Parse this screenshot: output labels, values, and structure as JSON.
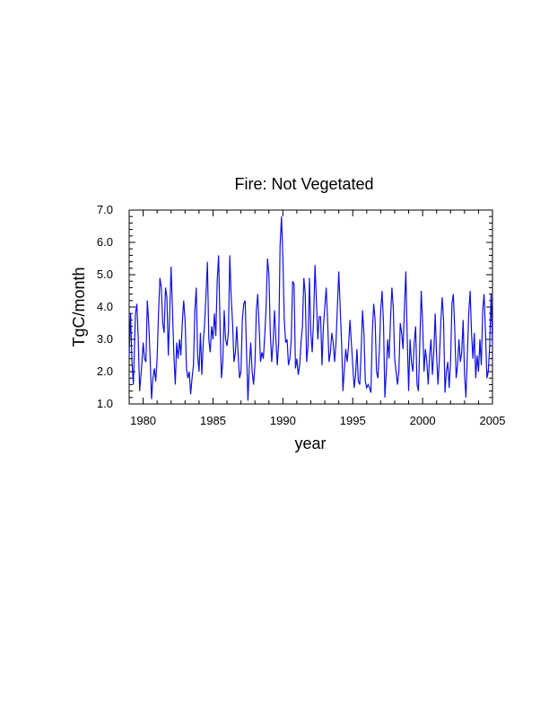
{
  "chart_data": {
    "type": "line",
    "title": "Fire: Not Vegetated",
    "xlabel": "year",
    "ylabel": "TgC/month",
    "xlim": [
      1979,
      2005
    ],
    "ylim": [
      1.0,
      7.0
    ],
    "x_ticks": [
      1980,
      1985,
      1990,
      1995,
      2000,
      2005
    ],
    "x_tick_labels": [
      "1980",
      "1985",
      "1990",
      "1995",
      "2000",
      "2005"
    ],
    "y_ticks": [
      1.0,
      2.0,
      3.0,
      4.0,
      5.0,
      6.0,
      7.0
    ],
    "y_tick_labels": [
      "1.0",
      "2.0",
      "3.0",
      "4.0",
      "5.0",
      "6.0",
      "7.0"
    ],
    "series": [
      {
        "name": "Fire: Not Vegetated",
        "color": "#1010e0",
        "points": [
          [
            1979.0,
            2.5
          ],
          [
            1979.1,
            3.8
          ],
          [
            1979.2,
            2.3
          ],
          [
            1979.3,
            1.6
          ],
          [
            1979.45,
            3.8
          ],
          [
            1979.55,
            4.1
          ],
          [
            1979.65,
            3.0
          ],
          [
            1979.75,
            1.4
          ],
          [
            1979.9,
            2.2
          ],
          [
            1980.0,
            2.9
          ],
          [
            1980.1,
            2.4
          ],
          [
            1980.2,
            2.3
          ],
          [
            1980.3,
            4.2
          ],
          [
            1980.4,
            3.5
          ],
          [
            1980.5,
            2.4
          ],
          [
            1980.6,
            1.15
          ],
          [
            1980.7,
            1.8
          ],
          [
            1980.8,
            2.1
          ],
          [
            1980.9,
            1.7
          ],
          [
            1981.0,
            2.4
          ],
          [
            1981.1,
            3.8
          ],
          [
            1981.2,
            4.9
          ],
          [
            1981.3,
            4.6
          ],
          [
            1981.4,
            3.5
          ],
          [
            1981.5,
            3.2
          ],
          [
            1981.6,
            4.6
          ],
          [
            1981.7,
            4.3
          ],
          [
            1981.8,
            2.5
          ],
          [
            1981.9,
            3.8
          ],
          [
            1982.0,
            5.25
          ],
          [
            1982.1,
            3.9
          ],
          [
            1982.2,
            2.5
          ],
          [
            1982.3,
            1.6
          ],
          [
            1982.4,
            2.9
          ],
          [
            1982.5,
            2.4
          ],
          [
            1982.6,
            3.0
          ],
          [
            1982.7,
            2.5
          ],
          [
            1982.8,
            3.5
          ],
          [
            1982.9,
            4.2
          ],
          [
            1983.0,
            3.6
          ],
          [
            1983.1,
            2.1
          ],
          [
            1983.2,
            1.8
          ],
          [
            1983.3,
            2.0
          ],
          [
            1983.4,
            1.3
          ],
          [
            1983.5,
            1.8
          ],
          [
            1983.6,
            2.2
          ],
          [
            1983.7,
            3.9
          ],
          [
            1983.8,
            4.6
          ],
          [
            1983.9,
            2.5
          ],
          [
            1984.0,
            2.0
          ],
          [
            1984.1,
            3.2
          ],
          [
            1984.2,
            1.9
          ],
          [
            1984.3,
            2.9
          ],
          [
            1984.4,
            3.5
          ],
          [
            1984.5,
            4.4
          ],
          [
            1984.6,
            5.4
          ],
          [
            1984.7,
            3.0
          ],
          [
            1984.8,
            2.6
          ],
          [
            1984.9,
            3.4
          ],
          [
            1985.0,
            3.0
          ],
          [
            1985.1,
            3.8
          ],
          [
            1985.2,
            3.1
          ],
          [
            1985.3,
            4.8
          ],
          [
            1985.4,
            5.6
          ],
          [
            1985.5,
            3.5
          ],
          [
            1985.6,
            1.8
          ],
          [
            1985.7,
            2.3
          ],
          [
            1985.8,
            3.9
          ],
          [
            1985.9,
            3.0
          ],
          [
            1986.0,
            2.8
          ],
          [
            1986.1,
            3.2
          ],
          [
            1986.2,
            5.6
          ],
          [
            1986.3,
            4.3
          ],
          [
            1986.4,
            3.5
          ],
          [
            1986.5,
            2.3
          ],
          [
            1986.6,
            2.6
          ],
          [
            1986.7,
            3.4
          ],
          [
            1986.8,
            2.5
          ],
          [
            1986.9,
            1.8
          ],
          [
            1987.0,
            2.0
          ],
          [
            1987.1,
            3.6
          ],
          [
            1987.2,
            4.1
          ],
          [
            1987.3,
            4.2
          ],
          [
            1987.4,
            2.6
          ],
          [
            1987.5,
            1.1
          ],
          [
            1987.6,
            2.2
          ],
          [
            1987.7,
            2.9
          ],
          [
            1987.8,
            2.0
          ],
          [
            1987.9,
            1.6
          ],
          [
            1988.0,
            2.2
          ],
          [
            1988.1,
            3.9
          ],
          [
            1988.2,
            4.4
          ],
          [
            1988.3,
            3.4
          ],
          [
            1988.4,
            2.3
          ],
          [
            1988.5,
            2.6
          ],
          [
            1988.6,
            2.4
          ],
          [
            1988.7,
            3.1
          ],
          [
            1988.8,
            4.0
          ],
          [
            1988.9,
            5.5
          ],
          [
            1989.0,
            5.0
          ],
          [
            1989.1,
            3.2
          ],
          [
            1989.2,
            2.3
          ],
          [
            1989.3,
            2.9
          ],
          [
            1989.4,
            3.9
          ],
          [
            1989.5,
            3.0
          ],
          [
            1989.6,
            2.2
          ],
          [
            1989.7,
            2.9
          ],
          [
            1989.8,
            5.9
          ],
          [
            1989.9,
            6.8
          ],
          [
            1990.0,
            5.5
          ],
          [
            1990.1,
            3.6
          ],
          [
            1990.2,
            2.9
          ],
          [
            1990.3,
            3.0
          ],
          [
            1990.4,
            2.2
          ],
          [
            1990.5,
            2.4
          ],
          [
            1990.6,
            3.0
          ],
          [
            1990.7,
            4.8
          ],
          [
            1990.8,
            4.7
          ],
          [
            1990.9,
            2.1
          ],
          [
            1991.0,
            2.4
          ],
          [
            1991.1,
            1.9
          ],
          [
            1991.2,
            2.2
          ],
          [
            1991.3,
            2.9
          ],
          [
            1991.4,
            3.4
          ],
          [
            1991.5,
            4.9
          ],
          [
            1991.6,
            4.4
          ],
          [
            1991.7,
            2.3
          ],
          [
            1991.8,
            2.8
          ],
          [
            1991.9,
            4.9
          ],
          [
            1992.0,
            3.2
          ],
          [
            1992.1,
            2.6
          ],
          [
            1992.2,
            3.7
          ],
          [
            1992.3,
            5.3
          ],
          [
            1992.4,
            4.2
          ],
          [
            1992.5,
            3.0
          ],
          [
            1992.6,
            3.7
          ],
          [
            1992.7,
            3.7
          ],
          [
            1992.8,
            2.2
          ],
          [
            1992.9,
            3.4
          ],
          [
            1993.0,
            4.0
          ],
          [
            1993.1,
            4.6
          ],
          [
            1993.2,
            3.6
          ],
          [
            1993.3,
            2.3
          ],
          [
            1993.4,
            2.6
          ],
          [
            1993.5,
            3.2
          ],
          [
            1993.6,
            2.9
          ],
          [
            1993.7,
            2.3
          ],
          [
            1993.8,
            2.9
          ],
          [
            1993.9,
            4.0
          ],
          [
            1994.0,
            5.1
          ],
          [
            1994.1,
            4.0
          ],
          [
            1994.2,
            2.9
          ],
          [
            1994.3,
            1.4
          ],
          [
            1994.4,
            2.1
          ],
          [
            1994.5,
            2.7
          ],
          [
            1994.6,
            2.3
          ],
          [
            1994.7,
            2.8
          ],
          [
            1994.8,
            3.6
          ],
          [
            1994.9,
            2.9
          ],
          [
            1995.0,
            2.2
          ],
          [
            1995.1,
            1.5
          ],
          [
            1995.2,
            1.9
          ],
          [
            1995.3,
            2.7
          ],
          [
            1995.4,
            1.7
          ],
          [
            1995.5,
            1.6
          ],
          [
            1995.6,
            2.6
          ],
          [
            1995.7,
            3.9
          ],
          [
            1995.8,
            3.2
          ],
          [
            1995.9,
            1.7
          ],
          [
            1996.0,
            1.5
          ],
          [
            1996.1,
            1.6
          ],
          [
            1996.2,
            1.5
          ],
          [
            1996.3,
            1.35
          ],
          [
            1996.4,
            3.2
          ],
          [
            1996.5,
            4.1
          ],
          [
            1996.6,
            3.6
          ],
          [
            1996.7,
            2.0
          ],
          [
            1996.8,
            1.8
          ],
          [
            1996.9,
            2.6
          ],
          [
            1997.0,
            3.9
          ],
          [
            1997.1,
            4.5
          ],
          [
            1997.2,
            3.5
          ],
          [
            1997.3,
            1.2
          ],
          [
            1997.4,
            2.0
          ],
          [
            1997.5,
            3.0
          ],
          [
            1997.6,
            2.4
          ],
          [
            1997.7,
            3.6
          ],
          [
            1997.8,
            4.6
          ],
          [
            1997.9,
            4.0
          ],
          [
            1998.0,
            2.4
          ],
          [
            1998.1,
            2.0
          ],
          [
            1998.2,
            1.6
          ],
          [
            1998.3,
            2.0
          ],
          [
            1998.4,
            3.5
          ],
          [
            1998.5,
            3.2
          ],
          [
            1998.6,
            2.7
          ],
          [
            1998.7,
            4.0
          ],
          [
            1998.8,
            5.1
          ],
          [
            1998.9,
            3.0
          ],
          [
            1999.0,
            1.4
          ],
          [
            1999.1,
            3.0
          ],
          [
            1999.2,
            2.3
          ],
          [
            1999.3,
            2.0
          ],
          [
            1999.4,
            2.9
          ],
          [
            1999.5,
            3.4
          ],
          [
            1999.6,
            1.6
          ],
          [
            1999.7,
            1.4
          ],
          [
            1999.8,
            2.9
          ],
          [
            1999.9,
            4.5
          ],
          [
            2000.0,
            3.5
          ],
          [
            2000.1,
            2.0
          ],
          [
            2000.2,
            2.7
          ],
          [
            2000.3,
            2.3
          ],
          [
            2000.4,
            1.6
          ],
          [
            2000.5,
            2.5
          ],
          [
            2000.6,
            3.0
          ],
          [
            2000.7,
            1.9
          ],
          [
            2000.8,
            2.6
          ],
          [
            2000.9,
            3.8
          ],
          [
            2001.0,
            2.5
          ],
          [
            2001.1,
            1.6
          ],
          [
            2001.2,
            2.4
          ],
          [
            2001.3,
            3.5
          ],
          [
            2001.4,
            4.3
          ],
          [
            2001.5,
            3.6
          ],
          [
            2001.6,
            1.35
          ],
          [
            2001.7,
            2.0
          ],
          [
            2001.8,
            2.3
          ],
          [
            2001.9,
            1.5
          ],
          [
            2002.0,
            2.3
          ],
          [
            2002.1,
            4.1
          ],
          [
            2002.2,
            4.4
          ],
          [
            2002.3,
            3.3
          ],
          [
            2002.4,
            1.8
          ],
          [
            2002.5,
            2.2
          ],
          [
            2002.6,
            3.0
          ],
          [
            2002.7,
            2.3
          ],
          [
            2002.8,
            2.6
          ],
          [
            2002.9,
            3.6
          ],
          [
            2003.0,
            1.9
          ],
          [
            2003.1,
            1.2
          ],
          [
            2003.2,
            2.5
          ],
          [
            2003.3,
            3.8
          ],
          [
            2003.4,
            4.5
          ],
          [
            2003.5,
            3.2
          ],
          [
            2003.6,
            2.4
          ],
          [
            2003.7,
            3.2
          ],
          [
            2003.8,
            1.8
          ],
          [
            2003.9,
            2.5
          ],
          [
            2004.0,
            2.0
          ],
          [
            2004.1,
            3.0
          ],
          [
            2004.2,
            2.2
          ],
          [
            2004.3,
            3.9
          ],
          [
            2004.4,
            4.4
          ],
          [
            2004.5,
            3.2
          ],
          [
            2004.6,
            1.8
          ],
          [
            2004.7,
            2.0
          ],
          [
            2004.8,
            2.8
          ],
          [
            2004.9,
            4.4
          ],
          [
            2005.0,
            2.8
          ]
        ]
      }
    ]
  }
}
